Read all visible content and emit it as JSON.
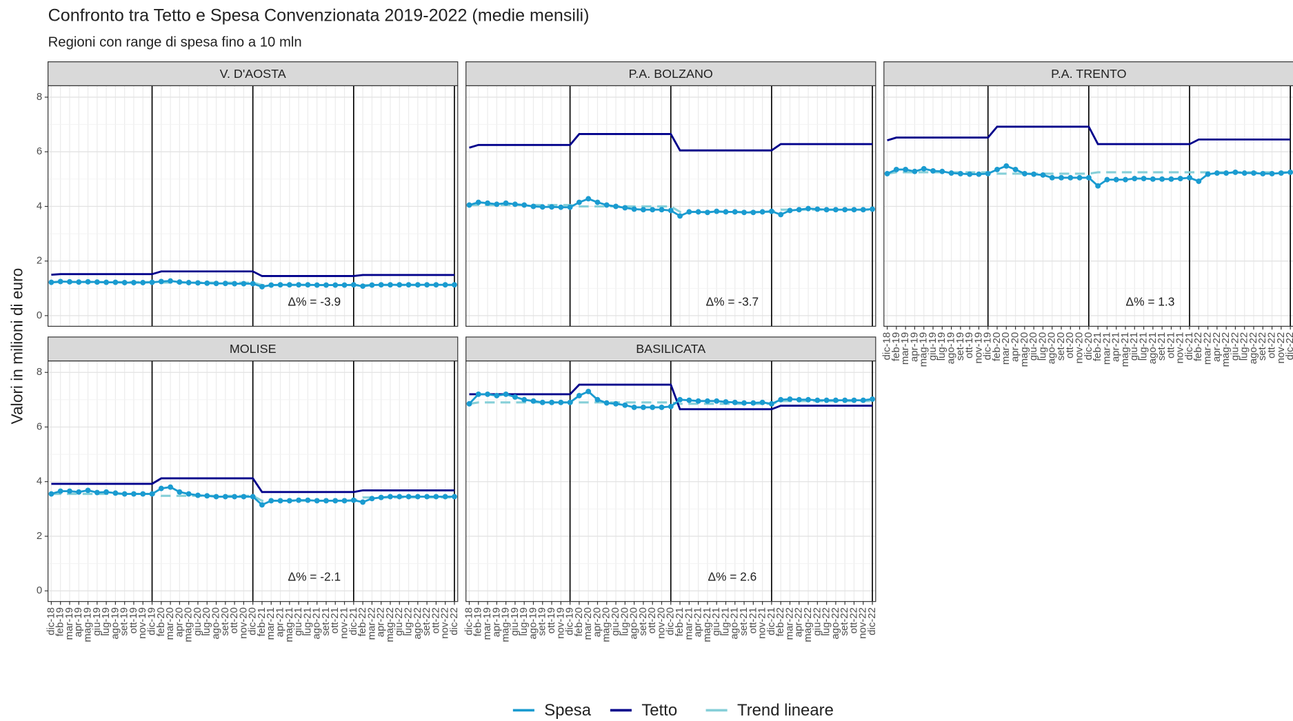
{
  "title": "Confronto tra Tetto e Spesa Convenzionata 2019-2022 (medie mensili)",
  "subtitle": "Regioni con range di spesa fino a 10 mln",
  "y_label": "Valori in milioni di euro",
  "chart_data": [
    {
      "type": "line",
      "title": "V. D'AOSTA",
      "annotation": "Δ% = -3.9",
      "categories": [
        "dic-18",
        "feb-19",
        "mar-19",
        "apr-19",
        "mag-19",
        "giu-19",
        "lug-19",
        "ago-19",
        "set-19",
        "ott-19",
        "nov-19",
        "dic-19",
        "feb-20",
        "mar-20",
        "apr-20",
        "mag-20",
        "giu-20",
        "lug-20",
        "ago-20",
        "set-20",
        "ott-20",
        "nov-20",
        "dic-20",
        "feb-21",
        "mar-21",
        "apr-21",
        "mag-21",
        "giu-21",
        "lug-21",
        "ago-21",
        "set-21",
        "ott-21",
        "nov-21",
        "dic-21",
        "feb-22",
        "mar-22",
        "apr-22",
        "mag-22",
        "giu-22",
        "lug-22",
        "ago-22",
        "set-22",
        "ott-22",
        "nov-22",
        "dic-22"
      ],
      "ylim": [
        -0.39,
        8.42
      ],
      "yticks": [
        0,
        2,
        4,
        6,
        8
      ],
      "grid": true,
      "series": [
        {
          "name": "Spesa",
          "color": "#1a9bd0",
          "marker": true,
          "values": [
            1.22,
            1.25,
            1.24,
            1.23,
            1.24,
            1.23,
            1.22,
            1.22,
            1.21,
            1.21,
            1.21,
            1.22,
            1.25,
            1.27,
            1.23,
            1.21,
            1.2,
            1.19,
            1.18,
            1.18,
            1.17,
            1.17,
            1.17,
            1.06,
            1.12,
            1.13,
            1.13,
            1.13,
            1.13,
            1.12,
            1.12,
            1.12,
            1.12,
            1.13,
            1.08,
            1.12,
            1.13,
            1.13,
            1.13,
            1.13,
            1.13,
            1.13,
            1.13,
            1.13,
            1.13
          ]
        },
        {
          "name": "Tetto",
          "color": "#00008b",
          "values": [
            1.5,
            1.52,
            1.52,
            1.52,
            1.52,
            1.52,
            1.52,
            1.52,
            1.52,
            1.52,
            1.52,
            1.52,
            1.62,
            1.62,
            1.62,
            1.62,
            1.62,
            1.62,
            1.62,
            1.62,
            1.62,
            1.62,
            1.62,
            1.45,
            1.45,
            1.45,
            1.45,
            1.45,
            1.45,
            1.45,
            1.45,
            1.45,
            1.45,
            1.45,
            1.49,
            1.49,
            1.49,
            1.49,
            1.49,
            1.49,
            1.49,
            1.49,
            1.49,
            1.49,
            1.49
          ]
        },
        {
          "name": "Trend lineare",
          "color": "#86cfd8",
          "dash": true,
          "values": [
            1.22,
            1.23,
            1.23,
            1.23,
            1.23,
            1.23,
            1.23,
            1.23,
            1.23,
            1.23,
            1.23,
            1.23,
            1.21,
            1.21,
            1.21,
            1.21,
            1.21,
            1.21,
            1.21,
            1.21,
            1.21,
            1.21,
            1.21,
            1.12,
            1.12,
            1.12,
            1.12,
            1.12,
            1.12,
            1.12,
            1.12,
            1.12,
            1.12,
            1.12,
            1.12,
            1.12,
            1.12,
            1.12,
            1.12,
            1.12,
            1.12,
            1.12,
            1.12,
            1.12,
            1.12
          ]
        }
      ]
    },
    {
      "type": "line",
      "title": "P.A. BOLZANO",
      "annotation": "Δ% = -3.7",
      "categories": [
        "dic-18",
        "feb-19",
        "mar-19",
        "apr-19",
        "mag-19",
        "giu-19",
        "lug-19",
        "ago-19",
        "set-19",
        "ott-19",
        "nov-19",
        "dic-19",
        "feb-20",
        "mar-20",
        "apr-20",
        "mag-20",
        "giu-20",
        "lug-20",
        "ago-20",
        "set-20",
        "ott-20",
        "nov-20",
        "dic-20",
        "feb-21",
        "mar-21",
        "apr-21",
        "mag-21",
        "giu-21",
        "lug-21",
        "ago-21",
        "set-21",
        "ott-21",
        "nov-21",
        "dic-21",
        "feb-22",
        "mar-22",
        "apr-22",
        "mag-22",
        "giu-22",
        "lug-22",
        "ago-22",
        "set-22",
        "ott-22",
        "nov-22",
        "dic-22"
      ],
      "ylim": [
        -0.39,
        8.42
      ],
      "yticks": [
        0,
        2,
        4,
        6,
        8
      ],
      "grid": true,
      "series": [
        {
          "color": "#1a9bd0",
          "marker": true,
          "values": [
            4.05,
            4.15,
            4.12,
            4.08,
            4.12,
            4.08,
            4.05,
            4.0,
            3.98,
            3.98,
            3.97,
            3.97,
            4.15,
            4.28,
            4.15,
            4.05,
            4.0,
            3.95,
            3.9,
            3.88,
            3.88,
            3.88,
            3.85,
            3.65,
            3.8,
            3.8,
            3.78,
            3.82,
            3.8,
            3.8,
            3.78,
            3.78,
            3.8,
            3.82,
            3.7,
            3.85,
            3.88,
            3.92,
            3.9,
            3.88,
            3.88,
            3.88,
            3.88,
            3.88,
            3.9
          ]
        },
        {
          "color": "#00008b",
          "values": [
            6.15,
            6.25,
            6.25,
            6.25,
            6.25,
            6.25,
            6.25,
            6.25,
            6.25,
            6.25,
            6.25,
            6.25,
            6.65,
            6.65,
            6.65,
            6.65,
            6.65,
            6.65,
            6.65,
            6.65,
            6.65,
            6.65,
            6.65,
            6.05,
            6.05,
            6.05,
            6.05,
            6.05,
            6.05,
            6.05,
            6.05,
            6.05,
            6.05,
            6.05,
            6.28,
            6.28,
            6.28,
            6.28,
            6.28,
            6.28,
            6.28,
            6.28,
            6.28,
            6.28,
            6.28
          ]
        },
        {
          "color": "#86cfd8",
          "dash": true,
          "values": [
            4.05,
            4.05,
            4.05,
            4.05,
            4.05,
            4.05,
            4.05,
            4.05,
            4.05,
            4.05,
            4.05,
            4.05,
            4.0,
            4.0,
            4.0,
            4.0,
            4.0,
            4.0,
            4.0,
            4.0,
            4.0,
            4.0,
            4.0,
            3.8,
            3.8,
            3.8,
            3.8,
            3.8,
            3.8,
            3.8,
            3.8,
            3.8,
            3.8,
            3.8,
            3.88,
            3.88,
            3.88,
            3.88,
            3.88,
            3.88,
            3.88,
            3.88,
            3.88,
            3.88,
            3.88
          ]
        }
      ]
    },
    {
      "type": "line",
      "title": "P.A. TRENTO",
      "annotation": "Δ% = 1.3",
      "categories": [
        "dic-18",
        "feb-19",
        "mar-19",
        "apr-19",
        "mag-19",
        "giu-19",
        "lug-19",
        "ago-19",
        "set-19",
        "ott-19",
        "nov-19",
        "dic-19",
        "feb-20",
        "mar-20",
        "apr-20",
        "mag-20",
        "giu-20",
        "lug-20",
        "ago-20",
        "set-20",
        "ott-20",
        "nov-20",
        "dic-20",
        "feb-21",
        "mar-21",
        "apr-21",
        "mag-21",
        "giu-21",
        "lug-21",
        "ago-21",
        "set-21",
        "ott-21",
        "nov-21",
        "dic-21",
        "feb-22",
        "mar-22",
        "apr-22",
        "mag-22",
        "giu-22",
        "lug-22",
        "ago-22",
        "set-22",
        "ott-22",
        "nov-22",
        "dic-22"
      ],
      "ylim": [
        -0.39,
        8.42
      ],
      "yticks": [
        0,
        2,
        4,
        6,
        8
      ],
      "grid": true,
      "series": [
        {
          "color": "#1a9bd0",
          "marker": true,
          "values": [
            5.2,
            5.35,
            5.35,
            5.28,
            5.38,
            5.3,
            5.28,
            5.22,
            5.2,
            5.18,
            5.18,
            5.2,
            5.35,
            5.48,
            5.35,
            5.2,
            5.18,
            5.15,
            5.05,
            5.05,
            5.05,
            5.05,
            5.05,
            4.75,
            4.98,
            4.98,
            4.98,
            5.02,
            5.02,
            5.0,
            5.0,
            5.0,
            5.02,
            5.05,
            4.92,
            5.18,
            5.22,
            5.22,
            5.25,
            5.22,
            5.22,
            5.2,
            5.2,
            5.22,
            5.25
          ]
        },
        {
          "color": "#00008b",
          "values": [
            6.42,
            6.52,
            6.52,
            6.52,
            6.52,
            6.52,
            6.52,
            6.52,
            6.52,
            6.52,
            6.52,
            6.52,
            6.92,
            6.92,
            6.92,
            6.92,
            6.92,
            6.92,
            6.92,
            6.92,
            6.92,
            6.92,
            6.92,
            6.28,
            6.28,
            6.28,
            6.28,
            6.28,
            6.28,
            6.28,
            6.28,
            6.28,
            6.28,
            6.28,
            6.45,
            6.45,
            6.45,
            6.45,
            6.45,
            6.45,
            6.45,
            6.45,
            6.45,
            6.45,
            6.45
          ]
        },
        {
          "color": "#86cfd8",
          "dash": true,
          "values": [
            5.2,
            5.25,
            5.25,
            5.25,
            5.25,
            5.25,
            5.25,
            5.25,
            5.25,
            5.25,
            5.25,
            5.25,
            5.2,
            5.2,
            5.2,
            5.2,
            5.2,
            5.2,
            5.2,
            5.2,
            5.2,
            5.2,
            5.2,
            5.25,
            5.25,
            5.25,
            5.25,
            5.25,
            5.25,
            5.25,
            5.25,
            5.25,
            5.25,
            5.25,
            5.25,
            5.25,
            5.25,
            5.25,
            5.25,
            5.25,
            5.25,
            5.25,
            5.25,
            5.25,
            5.25
          ]
        }
      ]
    },
    {
      "type": "line",
      "title": "MOLISE",
      "annotation": "Δ% = -2.1",
      "categories": [
        "dic-18",
        "feb-19",
        "mar-19",
        "apr-19",
        "mag-19",
        "giu-19",
        "lug-19",
        "ago-19",
        "set-19",
        "ott-19",
        "nov-19",
        "dic-19",
        "feb-20",
        "mar-20",
        "apr-20",
        "mag-20",
        "giu-20",
        "lug-20",
        "ago-20",
        "set-20",
        "ott-20",
        "nov-20",
        "dic-20",
        "feb-21",
        "mar-21",
        "apr-21",
        "mag-21",
        "giu-21",
        "lug-21",
        "ago-21",
        "set-21",
        "ott-21",
        "nov-21",
        "dic-21",
        "feb-22",
        "mar-22",
        "apr-22",
        "mag-22",
        "giu-22",
        "lug-22",
        "ago-22",
        "set-22",
        "ott-22",
        "nov-22",
        "dic-22"
      ],
      "ylim": [
        -0.39,
        8.42
      ],
      "yticks": [
        0,
        2,
        4,
        6,
        8
      ],
      "grid": true,
      "series": [
        {
          "color": "#1a9bd0",
          "marker": true,
          "values": [
            3.55,
            3.65,
            3.65,
            3.62,
            3.68,
            3.6,
            3.62,
            3.58,
            3.55,
            3.55,
            3.55,
            3.55,
            3.75,
            3.8,
            3.62,
            3.55,
            3.5,
            3.48,
            3.45,
            3.45,
            3.45,
            3.45,
            3.45,
            3.15,
            3.3,
            3.3,
            3.3,
            3.32,
            3.32,
            3.3,
            3.3,
            3.3,
            3.3,
            3.32,
            3.25,
            3.38,
            3.42,
            3.45,
            3.45,
            3.45,
            3.45,
            3.45,
            3.45,
            3.45,
            3.45
          ]
        },
        {
          "color": "#00008b",
          "values": [
            3.92,
            3.92,
            3.92,
            3.92,
            3.92,
            3.92,
            3.92,
            3.92,
            3.92,
            3.92,
            3.92,
            3.92,
            4.12,
            4.12,
            4.12,
            4.12,
            4.12,
            4.12,
            4.12,
            4.12,
            4.12,
            4.12,
            4.12,
            3.62,
            3.62,
            3.62,
            3.62,
            3.62,
            3.62,
            3.62,
            3.62,
            3.62,
            3.62,
            3.62,
            3.68,
            3.68,
            3.68,
            3.68,
            3.68,
            3.68,
            3.68,
            3.68,
            3.68,
            3.68,
            3.68
          ]
        },
        {
          "color": "#86cfd8",
          "dash": true,
          "values": [
            3.55,
            3.55,
            3.55,
            3.55,
            3.55,
            3.55,
            3.55,
            3.55,
            3.55,
            3.55,
            3.55,
            3.55,
            3.48,
            3.48,
            3.48,
            3.48,
            3.48,
            3.48,
            3.48,
            3.48,
            3.48,
            3.48,
            3.48,
            3.3,
            3.3,
            3.3,
            3.3,
            3.3,
            3.3,
            3.3,
            3.3,
            3.3,
            3.3,
            3.3,
            3.42,
            3.42,
            3.42,
            3.42,
            3.42,
            3.42,
            3.42,
            3.42,
            3.42,
            3.42,
            3.42
          ]
        }
      ]
    },
    {
      "type": "line",
      "title": "BASILICATA",
      "annotation": "Δ% = 2.6",
      "categories": [
        "dic-18",
        "feb-19",
        "mar-19",
        "apr-19",
        "mag-19",
        "giu-19",
        "lug-19",
        "ago-19",
        "set-19",
        "ott-19",
        "nov-19",
        "dic-19",
        "feb-20",
        "mar-20",
        "apr-20",
        "mag-20",
        "giu-20",
        "lug-20",
        "ago-20",
        "set-20",
        "ott-20",
        "nov-20",
        "dic-20",
        "feb-21",
        "mar-21",
        "apr-21",
        "mag-21",
        "giu-21",
        "lug-21",
        "ago-21",
        "set-21",
        "ott-21",
        "nov-21",
        "dic-21",
        "feb-22",
        "mar-22",
        "apr-22",
        "mag-22",
        "giu-22",
        "lug-22",
        "ago-22",
        "set-22",
        "ott-22",
        "nov-22",
        "dic-22"
      ],
      "ylim": [
        -0.39,
        8.42
      ],
      "yticks": [
        0,
        2,
        4,
        6,
        8
      ],
      "grid": true,
      "series": [
        {
          "color": "#1a9bd0",
          "marker": true,
          "values": [
            6.85,
            7.2,
            7.2,
            7.15,
            7.2,
            7.1,
            7.0,
            6.95,
            6.9,
            6.9,
            6.9,
            6.9,
            7.15,
            7.3,
            7.0,
            6.88,
            6.85,
            6.8,
            6.72,
            6.72,
            6.72,
            6.72,
            6.75,
            7.0,
            6.98,
            6.95,
            6.95,
            6.95,
            6.92,
            6.9,
            6.88,
            6.88,
            6.9,
            6.85,
            7.0,
            7.02,
            7.0,
            7.0,
            6.98,
            6.98,
            6.98,
            6.98,
            6.98,
            6.98,
            7.02
          ]
        },
        {
          "color": "#00008b",
          "values": [
            7.2,
            7.2,
            7.2,
            7.2,
            7.2,
            7.2,
            7.2,
            7.2,
            7.2,
            7.2,
            7.2,
            7.2,
            7.55,
            7.55,
            7.55,
            7.55,
            7.55,
            7.55,
            7.55,
            7.55,
            7.55,
            7.55,
            7.55,
            6.65,
            6.65,
            6.65,
            6.65,
            6.65,
            6.65,
            6.65,
            6.65,
            6.65,
            6.65,
            6.65,
            6.78,
            6.78,
            6.78,
            6.78,
            6.78,
            6.78,
            6.78,
            6.78,
            6.78,
            6.78,
            6.78
          ]
        },
        {
          "color": "#86cfd8",
          "dash": true,
          "values": [
            6.85,
            6.9,
            6.9,
            6.9,
            6.9,
            6.9,
            6.9,
            6.9,
            6.9,
            6.9,
            6.9,
            6.9,
            6.9,
            6.9,
            6.9,
            6.9,
            6.9,
            6.9,
            6.9,
            6.9,
            6.9,
            6.9,
            6.9,
            6.85,
            6.85,
            6.85,
            6.85,
            6.85,
            6.85,
            6.85,
            6.85,
            6.85,
            6.85,
            6.85,
            6.95,
            6.95,
            6.95,
            6.95,
            6.95,
            6.95,
            6.95,
            6.95,
            6.95,
            6.95,
            6.95
          ]
        }
      ]
    }
  ]
}
